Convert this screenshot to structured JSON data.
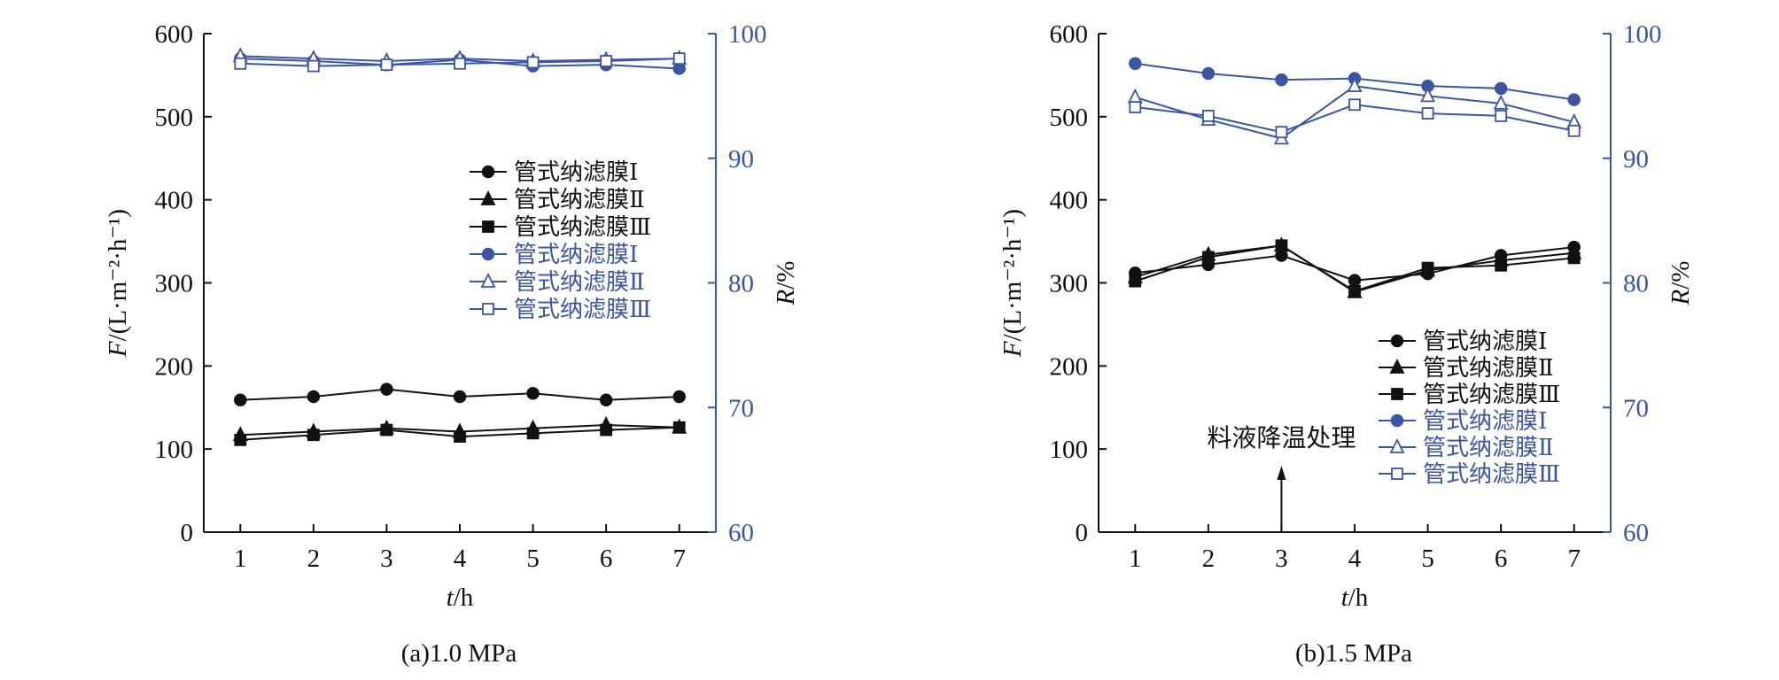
{
  "colors": {
    "black": "#111111",
    "blue": "#3a55a4"
  },
  "chart_data": [
    {
      "type": "line",
      "caption": "(a)1.0 MPa",
      "xlabel_var": "t",
      "xlabel_unit": "/h",
      "ylabel_left_var": "F",
      "ylabel_left_unit": "/(L·m⁻²·h⁻¹)",
      "ylabel_right_var": "R",
      "ylabel_right_unit": "/%",
      "x": [
        1,
        2,
        3,
        4,
        5,
        6,
        7
      ],
      "x_ticks": [
        "1",
        "2",
        "3",
        "4",
        "5",
        "6",
        "7"
      ],
      "xlim": [
        0.5,
        7.5
      ],
      "ylim_left": [
        0,
        600
      ],
      "yticks_left": [
        "0",
        "100",
        "200",
        "300",
        "400",
        "500",
        "600"
      ],
      "ylim_right": [
        60,
        100
      ],
      "yticks_right": [
        "60",
        "70",
        "80",
        "90",
        "100"
      ],
      "legend_position": "right-upper-middle",
      "series": [
        {
          "name": "管式纳滤膜Ⅰ",
          "axis": "left",
          "color": "black",
          "marker": "circle",
          "values": [
            159,
            163,
            172,
            163,
            167,
            159,
            163
          ]
        },
        {
          "name": "管式纳滤膜Ⅱ",
          "axis": "left",
          "color": "black",
          "marker": "triangle",
          "values": [
            117,
            121,
            125,
            121,
            125,
            129,
            126
          ]
        },
        {
          "name": "管式纳滤膜Ⅲ",
          "axis": "left",
          "color": "black",
          "marker": "square",
          "values": [
            111,
            117,
            123,
            115,
            119,
            123,
            126
          ]
        },
        {
          "name": "管式纳滤膜Ⅰ",
          "axis": "right",
          "color": "blue",
          "marker": "circle",
          "values": [
            98.0,
            97.8,
            97.5,
            97.9,
            97.4,
            97.5,
            97.2
          ]
        },
        {
          "name": "管式纳滤膜Ⅱ",
          "axis": "right",
          "color": "blue",
          "marker": "triangle-open",
          "values": [
            98.2,
            98.0,
            97.8,
            98.0,
            97.8,
            97.9,
            98.0
          ]
        },
        {
          "name": "管式纳滤膜Ⅲ",
          "axis": "right",
          "color": "blue",
          "marker": "square-open",
          "values": [
            97.6,
            97.4,
            97.5,
            97.6,
            97.7,
            97.8,
            98.0
          ]
        }
      ]
    },
    {
      "type": "line",
      "caption": "(b)1.5 MPa",
      "xlabel_var": "t",
      "xlabel_unit": "/h",
      "ylabel_left_var": "F",
      "ylabel_left_unit": "/(L·m⁻²·h⁻¹)",
      "ylabel_right_var": "R",
      "ylabel_right_unit": "/%",
      "x": [
        1,
        2,
        3,
        4,
        5,
        6,
        7
      ],
      "x_ticks": [
        "1",
        "2",
        "3",
        "4",
        "5",
        "6",
        "7"
      ],
      "xlim": [
        0.5,
        7.5
      ],
      "ylim_left": [
        0,
        600
      ],
      "yticks_left": [
        "0",
        "100",
        "200",
        "300",
        "400",
        "500",
        "600"
      ],
      "ylim_right": [
        60,
        100
      ],
      "yticks_right": [
        "60",
        "70",
        "80",
        "90",
        "100"
      ],
      "legend_position": "lower-right",
      "annotation": {
        "text": "料液降温处理",
        "x": 3
      },
      "series": [
        {
          "name": "管式纳滤膜Ⅰ",
          "axis": "left",
          "color": "black",
          "marker": "circle",
          "values": [
            312,
            322,
            333,
            303,
            311,
            333,
            343
          ]
        },
        {
          "name": "管式纳滤膜Ⅱ",
          "axis": "left",
          "color": "black",
          "marker": "triangle",
          "values": [
            307,
            334,
            345,
            289,
            315,
            327,
            336
          ]
        },
        {
          "name": "管式纳滤膜Ⅲ",
          "axis": "left",
          "color": "black",
          "marker": "square",
          "values": [
            302,
            331,
            345,
            290,
            318,
            321,
            330
          ]
        },
        {
          "name": "管式纳滤膜Ⅰ",
          "axis": "right",
          "color": "blue",
          "marker": "circle",
          "values": [
            97.6,
            96.8,
            96.3,
            96.4,
            95.8,
            95.6,
            94.7
          ]
        },
        {
          "name": "管式纳滤膜Ⅱ",
          "axis": "right",
          "color": "blue",
          "marker": "triangle-open",
          "values": [
            94.9,
            93.1,
            91.6,
            95.8,
            95.0,
            94.4,
            92.9
          ]
        },
        {
          "name": "管式纳滤膜Ⅲ",
          "axis": "right",
          "color": "blue",
          "marker": "square-open",
          "values": [
            94.1,
            93.4,
            92.1,
            94.3,
            93.6,
            93.4,
            92.2
          ]
        }
      ]
    }
  ]
}
